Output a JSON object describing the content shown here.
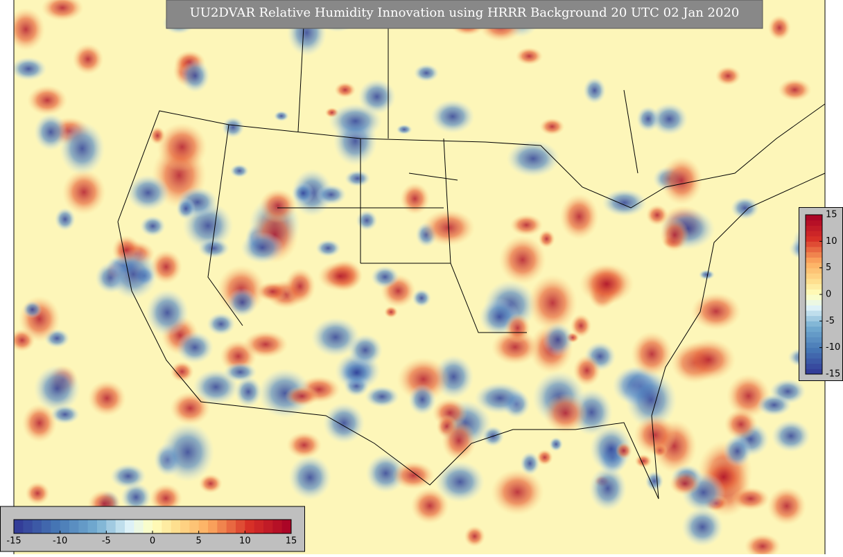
{
  "title": "UU2DVAR Relative Humidity Innovation using HRRR Background 20 UTC 02 Jan 2020",
  "colorbars": [
    {
      "orientation": "horizontal",
      "range": [
        -15,
        15
      ],
      "ticks": [
        -15,
        -10,
        -5,
        0,
        5,
        10,
        15
      ]
    },
    {
      "orientation": "vertical",
      "range": [
        -15,
        15
      ],
      "ticks": [
        -15,
        -10,
        -5,
        0,
        5,
        10,
        15
      ]
    }
  ]
}
